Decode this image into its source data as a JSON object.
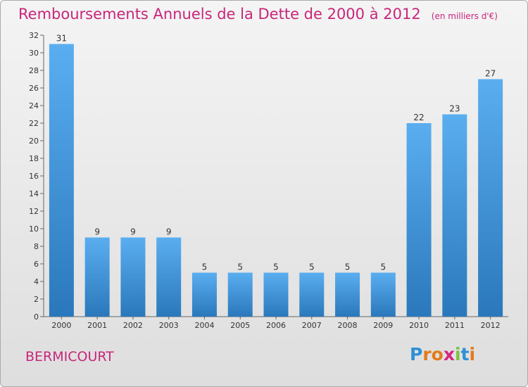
{
  "header": {
    "title": "Remboursements Annuels de la Dette de 2000 à 2012",
    "subtitle": "(en milliers d'€)"
  },
  "footer": {
    "commune": "BERMICOURT",
    "logo_text": "Proxiti"
  },
  "colors": {
    "accent": "#c8267a",
    "bar_top": "#5aaef0",
    "bar_bottom": "#2a78bb"
  },
  "chart_data": {
    "type": "bar",
    "title": "Remboursements Annuels de la Dette de 2000 à 2012",
    "subtitle": "(en milliers d'€)",
    "xlabel": "",
    "ylabel": "",
    "categories": [
      "2000",
      "2001",
      "2002",
      "2003",
      "2004",
      "2005",
      "2006",
      "2007",
      "2008",
      "2009",
      "2010",
      "2011",
      "2012"
    ],
    "values": [
      31,
      9,
      9,
      9,
      5,
      5,
      5,
      5,
      5,
      5,
      22,
      23,
      27
    ],
    "ylim": [
      0,
      32
    ],
    "yticks": [
      0,
      2,
      4,
      6,
      8,
      10,
      12,
      14,
      16,
      18,
      20,
      22,
      24,
      26,
      28,
      30,
      32
    ],
    "grid": false,
    "legend": "none"
  }
}
